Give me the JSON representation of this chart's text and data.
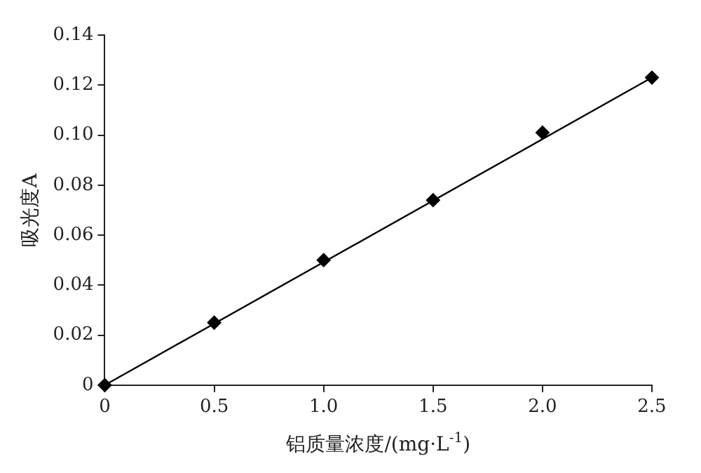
{
  "chart_data": {
    "type": "scatter",
    "xlabel": "铝质量浓度/(mg·L$^{-1}$)",
    "ylabel": "吸光度A",
    "xlim": [
      0,
      2.5
    ],
    "xticks": [
      0,
      0.5,
      {
        "value": 1,
        "label": "1.0"
      },
      1.5,
      {
        "value": 2,
        "label": "2.0"
      },
      2.5
    ],
    "ylim": [
      0,
      0.14
    ],
    "yticks": [
      0,
      0.02,
      0.04,
      0.06,
      0.08,
      {
        "value": 0.1,
        "label": "0.10"
      },
      0.12,
      0.14
    ],
    "grid": false,
    "series": [
      {
        "color": "#000000",
        "marker": "diamond",
        "x": [
          0,
          0.5,
          1,
          1.5,
          2,
          2.5
        ],
        "values": [
          0,
          0.025,
          0.05,
          0.074,
          0.101,
          0.123
        ]
      },
      {
        "type": "line",
        "color": "#000000",
        "marker": "none",
        "x": [
          0,
          2.5
        ],
        "values": [
          0,
          0.123
        ]
      }
    ]
  }
}
